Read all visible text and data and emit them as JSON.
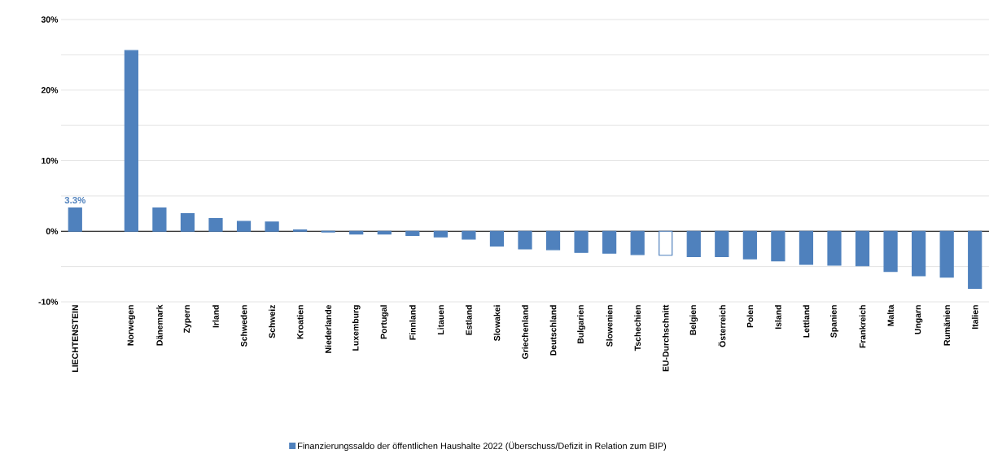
{
  "chart_data": {
    "type": "bar",
    "categories": [
      "LIECHTENSTEIN",
      null,
      "Norwegen",
      "Dänemark",
      "Zypern",
      "Irland",
      "Schweden",
      "Schweiz",
      "Kroatien",
      "Niederlande",
      "Luxemburg",
      "Portugal",
      "Finnland",
      "Litauen",
      "Estland",
      "Slowakei",
      "Griechenland",
      "Deutschland",
      "Bulgarien",
      "Slowenien",
      "Tschechien",
      "EU-Durchschnitt",
      "Belgien",
      "Österreich",
      "Polen",
      "Island",
      "Lettland",
      "Spanien",
      "Frankreich",
      "Malta",
      "Ungarn",
      "Rumänien",
      "Italien"
    ],
    "series": [
      {
        "name": "Finanzierungssaldo der öffentlichen Haushalte 2022 (Überschuss/Defizit in Relation zum BIP)",
        "color": "#4f81bd",
        "values": [
          3.3,
          null,
          25.6,
          3.3,
          2.5,
          1.8,
          1.4,
          1.3,
          0.2,
          -0.1,
          -0.4,
          -0.4,
          -0.6,
          -0.8,
          -1.1,
          -2.1,
          -2.5,
          -2.6,
          -3.0,
          -3.1,
          -3.3,
          -3.4,
          -3.6,
          -3.6,
          -3.9,
          -4.2,
          -4.7,
          -4.8,
          -4.9,
          -5.7,
          -6.3,
          -6.5,
          -8.1
        ],
        "value_labels": [
          "3.3%",
          null,
          null,
          null,
          null,
          null,
          null,
          null,
          null,
          null,
          null,
          null,
          null,
          null,
          null,
          null,
          null,
          null,
          null,
          null,
          null,
          null,
          null,
          null,
          null,
          null,
          null,
          null,
          null,
          null,
          null,
          null,
          null
        ]
      }
    ],
    "colors": [
      "#4f81bd",
      "#4f81bd",
      "#4f81bd",
      "#4f81bd",
      "#4f81bd",
      "#4f81bd",
      "#4f81bd",
      "#4f81bd",
      "#4f81bd",
      "#4f81bd",
      "#4f81bd",
      "#4f81bd",
      "#4f81bd",
      "#4f81bd",
      "#4f81bd",
      "#4f81bd",
      "#4f81bd",
      "#4f81bd",
      "#4f81bd",
      "#4f81bd",
      "#4f81bd",
      "#ffffff",
      "#4f81bd",
      "#4f81bd",
      "#4f81bd",
      "#4f81bd",
      "#4f81bd",
      "#4f81bd",
      "#4f81bd",
      "#4f81bd",
      "#4f81bd",
      "#4f81bd",
      "#4f81bd"
    ],
    "ylim": [
      -10,
      30
    ],
    "yticks": [
      {
        "value": -10,
        "label": "-10%"
      },
      {
        "value": -5,
        "label": null
      },
      {
        "value": 0,
        "label": "0%"
      },
      {
        "value": 5,
        "label": null
      },
      {
        "value": 10,
        "label": "10%"
      },
      {
        "value": 15,
        "label": null
      },
      {
        "value": 20,
        "label": "20%"
      },
      {
        "value": 25,
        "label": null
      },
      {
        "value": 30,
        "label": "30%"
      }
    ],
    "grid": "y",
    "legend": "bottom"
  }
}
